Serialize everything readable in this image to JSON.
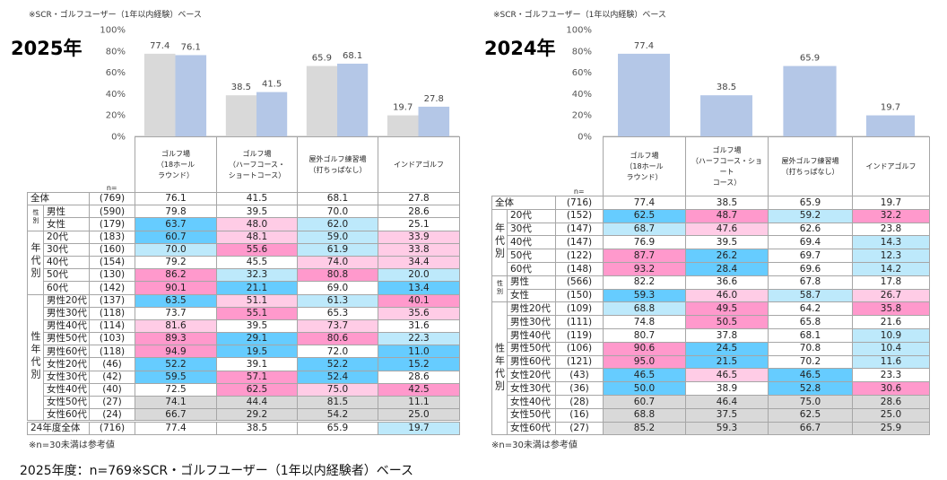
{
  "colors": {
    "bar_2025": "#b4c7e7",
    "bar_2024": "#d9d9d9",
    "b": "#66ccff",
    "lb": "#bde9fb",
    "p": "#ff99cc",
    "lp": "#ffcce6",
    "g": "#d9d9d9"
  },
  "footer": "2025年度：n=769※SCR・ゴルフユーザー（1年以内経験者）ベース",
  "left": {
    "base": "※SCR・ゴルフユーザー（1年以内経験）ベース",
    "year": "2025年",
    "note": "※n=30未満は参考値",
    "n_label": "n=",
    "columns": [
      "ゴルフ場\n（18ホール\nラウンド）",
      "ゴルフ場\n（ハーフコース・\nショートコース）",
      "屋外ゴルフ練習場\n（打ちっぱなし）",
      "インドアゴルフ"
    ],
    "groups": [
      {
        "label": "",
        "rows": [
          {
            "label": "全体",
            "n": "(769)",
            "v": [
              "76.1",
              "41.5",
              "68.1",
              "27.8"
            ],
            "c": [
              "",
              "",
              "",
              ""
            ]
          }
        ]
      },
      {
        "label": "性別",
        "small": true,
        "rows": [
          {
            "label": "男性",
            "n": "(590)",
            "v": [
              "79.8",
              "39.5",
              "70.0",
              "28.6"
            ],
            "c": [
              "",
              "",
              "",
              ""
            ]
          },
          {
            "label": "女性",
            "n": "(179)",
            "v": [
              "63.7",
              "48.0",
              "62.0",
              "25.1"
            ],
            "c": [
              "b",
              "lp",
              "lb",
              ""
            ]
          }
        ]
      },
      {
        "label": "年代別",
        "rows": [
          {
            "label": "20代",
            "n": "(183)",
            "v": [
              "60.7",
              "48.1",
              "59.0",
              "33.9"
            ],
            "c": [
              "b",
              "lp",
              "lb",
              "lp"
            ]
          },
          {
            "label": "30代",
            "n": "(160)",
            "v": [
              "70.0",
              "55.6",
              "61.9",
              "33.8"
            ],
            "c": [
              "lb",
              "p",
              "lb",
              "lp"
            ]
          },
          {
            "label": "40代",
            "n": "(154)",
            "v": [
              "79.2",
              "45.5",
              "74.0",
              "34.4"
            ],
            "c": [
              "",
              "",
              "lp",
              "lp"
            ]
          },
          {
            "label": "50代",
            "n": "(130)",
            "v": [
              "86.2",
              "32.3",
              "80.8",
              "20.0"
            ],
            "c": [
              "p",
              "lb",
              "p",
              "lb"
            ]
          },
          {
            "label": "60代",
            "n": "(142)",
            "v": [
              "90.1",
              "21.1",
              "69.0",
              "13.4"
            ],
            "c": [
              "p",
              "b",
              "",
              "b"
            ]
          }
        ]
      },
      {
        "label": "性年代別",
        "rows": [
          {
            "label": "男性20代",
            "n": "(137)",
            "v": [
              "63.5",
              "51.1",
              "61.3",
              "40.1"
            ],
            "c": [
              "b",
              "lp",
              "lb",
              "p"
            ]
          },
          {
            "label": "男性30代",
            "n": "(118)",
            "v": [
              "73.7",
              "55.1",
              "65.3",
              "35.6"
            ],
            "c": [
              "",
              "p",
              "",
              "lp"
            ]
          },
          {
            "label": "男性40代",
            "n": "(114)",
            "v": [
              "81.6",
              "39.5",
              "73.7",
              "31.6"
            ],
            "c": [
              "lp",
              "",
              "lp",
              ""
            ]
          },
          {
            "label": "男性50代",
            "n": "(103)",
            "v": [
              "89.3",
              "29.1",
              "80.6",
              "22.3"
            ],
            "c": [
              "p",
              "b",
              "p",
              "lb"
            ]
          },
          {
            "label": "男性60代",
            "n": "(118)",
            "v": [
              "94.9",
              "19.5",
              "72.0",
              "11.0"
            ],
            "c": [
              "p",
              "b",
              "",
              "b"
            ]
          },
          {
            "label": "女性20代",
            "n": "(46)",
            "v": [
              "52.2",
              "39.1",
              "52.2",
              "15.2"
            ],
            "c": [
              "b",
              "",
              "b",
              "b"
            ]
          },
          {
            "label": "女性30代",
            "n": "(42)",
            "v": [
              "59.5",
              "57.1",
              "52.4",
              "28.6"
            ],
            "c": [
              "b",
              "p",
              "b",
              ""
            ]
          },
          {
            "label": "女性40代",
            "n": "(40)",
            "v": [
              "72.5",
              "62.5",
              "75.0",
              "42.5"
            ],
            "c": [
              "",
              "p",
              "lp",
              "p"
            ]
          },
          {
            "label": "女性50代",
            "n": "(27)",
            "v": [
              "74.1",
              "44.4",
              "81.5",
              "11.1"
            ],
            "c": [
              "g",
              "g",
              "g",
              "g"
            ]
          },
          {
            "label": "女性60代",
            "n": "(24)",
            "v": [
              "66.7",
              "29.2",
              "54.2",
              "25.0"
            ],
            "c": [
              "g",
              "g",
              "g",
              "g"
            ]
          }
        ]
      },
      {
        "label": "",
        "double": true,
        "rows": [
          {
            "label": "24年度全体",
            "n": "(716)",
            "v": [
              "77.4",
              "38.5",
              "65.9",
              "19.7"
            ],
            "c": [
              "",
              "",
              "",
              "lb"
            ]
          }
        ]
      }
    ]
  },
  "right": {
    "base": "※SCR・ゴルフユーザー（1年以内経験）ベース",
    "year": "2024年",
    "note": "※n=30未満は参考値",
    "n_label": "n=",
    "columns": [
      "ゴルフ場\n（18ホール\nラウンド）",
      "ゴルフ場\n（ハーフコース・ショート\nコース）",
      "屋外ゴルフ練習場\n（打ちっぱなし）",
      "インドアゴルフ"
    ],
    "groups": [
      {
        "label": "",
        "rows": [
          {
            "label": "全体",
            "n": "(716)",
            "v": [
              "77.4",
              "38.5",
              "65.9",
              "19.7"
            ],
            "c": [
              "",
              "",
              "",
              ""
            ]
          }
        ]
      },
      {
        "label": "年代別",
        "rows": [
          {
            "label": "20代",
            "n": "(152)",
            "v": [
              "62.5",
              "48.7",
              "59.2",
              "32.2"
            ],
            "c": [
              "b",
              "p",
              "lb",
              "p"
            ]
          },
          {
            "label": "30代",
            "n": "(147)",
            "v": [
              "68.7",
              "47.6",
              "62.6",
              "23.8"
            ],
            "c": [
              "lb",
              "lp",
              "",
              ""
            ]
          },
          {
            "label": "40代",
            "n": "(147)",
            "v": [
              "76.9",
              "39.5",
              "69.4",
              "14.3"
            ],
            "c": [
              "",
              "",
              "",
              "lb"
            ]
          },
          {
            "label": "50代",
            "n": "(122)",
            "v": [
              "87.7",
              "26.2",
              "69.7",
              "12.3"
            ],
            "c": [
              "p",
              "b",
              "",
              "lb"
            ]
          },
          {
            "label": "60代",
            "n": "(148)",
            "v": [
              "93.2",
              "28.4",
              "69.6",
              "14.2"
            ],
            "c": [
              "p",
              "b",
              "",
              "lb"
            ]
          }
        ]
      },
      {
        "label": "性別",
        "small": true,
        "rows": [
          {
            "label": "男性",
            "n": "(566)",
            "v": [
              "82.2",
              "36.6",
              "67.8",
              "17.8"
            ],
            "c": [
              "",
              "",
              "",
              ""
            ]
          },
          {
            "label": "女性",
            "n": "(150)",
            "v": [
              "59.3",
              "46.0",
              "58.7",
              "26.7"
            ],
            "c": [
              "b",
              "lp",
              "lb",
              "lp"
            ]
          }
        ]
      },
      {
        "label": "性年代別",
        "rows": [
          {
            "label": "男性20代",
            "n": "(109)",
            "v": [
              "68.8",
              "49.5",
              "64.2",
              "35.8"
            ],
            "c": [
              "lb",
              "p",
              "",
              "p"
            ]
          },
          {
            "label": "男性30代",
            "n": "(111)",
            "v": [
              "74.8",
              "50.5",
              "65.8",
              "21.6"
            ],
            "c": [
              "",
              "p",
              "",
              ""
            ]
          },
          {
            "label": "男性40代",
            "n": "(119)",
            "v": [
              "80.7",
              "37.8",
              "68.1",
              "10.9"
            ],
            "c": [
              "",
              "",
              "",
              "lb"
            ]
          },
          {
            "label": "男性50代",
            "n": "(106)",
            "v": [
              "90.6",
              "24.5",
              "70.8",
              "10.4"
            ],
            "c": [
              "p",
              "b",
              "",
              "lb"
            ]
          },
          {
            "label": "男性60代",
            "n": "(121)",
            "v": [
              "95.0",
              "21.5",
              "70.2",
              "11.6"
            ],
            "c": [
              "p",
              "b",
              "",
              "lb"
            ]
          },
          {
            "label": "女性20代",
            "n": "(43)",
            "v": [
              "46.5",
              "46.5",
              "46.5",
              "23.3"
            ],
            "c": [
              "b",
              "lp",
              "b",
              ""
            ]
          },
          {
            "label": "女性30代",
            "n": "(36)",
            "v": [
              "50.0",
              "38.9",
              "52.8",
              "30.6"
            ],
            "c": [
              "b",
              "",
              "b",
              "p"
            ]
          },
          {
            "label": "女性40代",
            "n": "(28)",
            "v": [
              "60.7",
              "46.4",
              "75.0",
              "28.6"
            ],
            "c": [
              "g",
              "g",
              "g",
              "g"
            ]
          },
          {
            "label": "女性50代",
            "n": "(16)",
            "v": [
              "68.8",
              "37.5",
              "62.5",
              "25.0"
            ],
            "c": [
              "g",
              "g",
              "g",
              "g"
            ]
          },
          {
            "label": "女性60代",
            "n": "(27)",
            "v": [
              "85.2",
              "59.3",
              "66.7",
              "25.9"
            ],
            "c": [
              "g",
              "g",
              "g",
              "g"
            ]
          }
        ]
      }
    ]
  },
  "chart_data": [
    {
      "type": "bar",
      "title": "2025年",
      "ylim": [
        0,
        100
      ],
      "yticks": [
        "0%",
        "20%",
        "40%",
        "60%",
        "80%",
        "100%"
      ],
      "categories": [
        "ゴルフ場（18ホールラウンド）",
        "ゴルフ場（ハーフコース・ショートコース）",
        "屋外ゴルフ練習場（打ちっぱなし）",
        "インドアゴルフ"
      ],
      "series": [
        {
          "values": [
            77.4,
            38.5,
            65.9,
            19.7
          ],
          "color": "#d9d9d9"
        },
        {
          "values": [
            76.1,
            41.5,
            68.1,
            27.8
          ],
          "color": "#b4c7e7"
        }
      ]
    },
    {
      "type": "bar",
      "title": "2024年",
      "ylim": [
        0,
        100
      ],
      "yticks": [
        "0%",
        "20%",
        "40%",
        "60%",
        "80%",
        "100%"
      ],
      "categories": [
        "ゴルフ場（18ホールラウンド）",
        "ゴルフ場（ハーフコース・ショートコース）",
        "屋外ゴルフ練習場（打ちっぱなし）",
        "インドアゴルフ"
      ],
      "series": [
        {
          "values": [
            77.4,
            38.5,
            65.9,
            19.7
          ],
          "color": "#b4c7e7"
        }
      ]
    }
  ]
}
